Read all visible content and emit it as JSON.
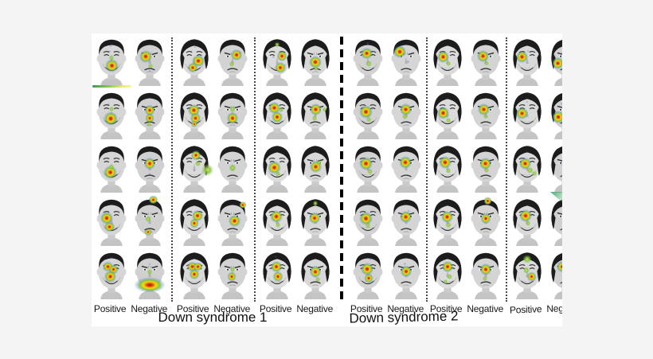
{
  "figure": {
    "rows": 5,
    "groups": [
      {
        "title": "Down syndrome 1",
        "pairs": [
          {
            "labels": [
              "Positive",
              "Negative"
            ]
          },
          {
            "labels": [
              "Positive",
              "Negative"
            ]
          },
          {
            "labels": [
              "Positive",
              "Negative"
            ]
          }
        ]
      },
      {
        "title": "Down syndrome 2",
        "pairs": [
          {
            "labels": [
              "Positive",
              "Negative"
            ]
          },
          {
            "labels": [
              "Positive",
              "Negative"
            ]
          },
          {
            "labels": [
              "Positive",
              "Negative"
            ]
          }
        ]
      }
    ],
    "face_columns": [
      "m",
      "m",
      "f",
      "m",
      "f",
      "f",
      "m",
      "m",
      "f",
      "m",
      "f",
      "f"
    ],
    "heat": [
      [
        [
          [
            0.52,
            0.6,
            1.0
          ],
          [
            0.5,
            0.44,
            0.55,
            "g"
          ],
          [
            0.48,
            0.2,
            0.4,
            "b"
          ],
          [
            0.45,
            0.31,
            0.35,
            "b"
          ]
        ],
        [
          [
            0.4,
            0.42,
            0.95
          ],
          [
            0.52,
            0.6,
            0.5,
            "g"
          ],
          [
            0.5,
            0.7,
            0.4,
            "b"
          ]
        ],
        [
          [
            0.6,
            0.5,
            0.95
          ],
          [
            0.46,
            0.63,
            0.75
          ],
          [
            0.52,
            0.22,
            0.4,
            "b"
          ]
        ],
        [
          [
            0.6,
            0.38,
            0.85
          ],
          [
            0.48,
            0.56,
            0.55,
            "g"
          ]
        ],
        [
          [
            0.5,
            0.18,
            0.5,
            "g"
          ],
          [
            0.63,
            0.41,
            0.8
          ],
          [
            0.58,
            0.63,
            0.85
          ],
          [
            0.4,
            0.42,
            0.4,
            "b"
          ]
        ],
        [
          [
            0.5,
            0.52,
            0.95
          ],
          [
            0.53,
            0.65,
            0.5,
            "g"
          ]
        ],
        [
          [
            0.47,
            0.35,
            0.9
          ],
          [
            0.52,
            0.56,
            0.6,
            "g"
          ],
          [
            0.5,
            0.15,
            0.4,
            "b"
          ]
        ],
        [
          [
            0.32,
            0.32,
            0.95
          ],
          [
            0.56,
            0.52,
            0.45,
            "b"
          ]
        ],
        [
          [
            0.38,
            0.42,
            0.9
          ],
          [
            0.52,
            0.55,
            0.5,
            "g"
          ]
        ],
        [
          [
            0.42,
            0.4,
            0.9
          ],
          [
            0.52,
            0.55,
            0.45,
            "g"
          ]
        ],
        [
          [
            0.35,
            0.42,
            0.9
          ],
          [
            0.52,
            0.3,
            0.4,
            "b"
          ]
        ],
        [
          [
            0.3,
            0.55,
            0.9
          ],
          [
            0.4,
            0.35,
            0.45,
            "b"
          ]
        ]
      ],
      [
        [
          [
            0.48,
            0.58,
            1.05
          ],
          [
            0.5,
            0.4,
            0.5,
            "g"
          ],
          [
            0.42,
            0.3,
            0.35,
            "b"
          ]
        ],
        [
          [
            0.5,
            0.42,
            0.8
          ],
          [
            0.5,
            0.58,
            0.7
          ],
          [
            0.48,
            0.7,
            0.45,
            "g"
          ]
        ],
        [
          [
            0.48,
            0.42,
            0.9
          ],
          [
            0.53,
            0.58,
            0.8
          ],
          [
            0.5,
            0.7,
            0.5
          ]
        ],
        [
          [
            0.5,
            0.4,
            0.65,
            "g"
          ],
          [
            0.5,
            0.58,
            0.9
          ]
        ],
        [
          [
            0.42,
            0.38,
            0.9
          ],
          [
            0.5,
            0.55,
            0.85
          ],
          [
            0.6,
            0.42,
            0.5,
            "g"
          ]
        ],
        [
          [
            0.52,
            0.4,
            0.9
          ],
          [
            0.48,
            0.58,
            0.55,
            "g"
          ],
          [
            0.75,
            0.4,
            0.45,
            "g"
          ]
        ],
        [
          [
            0.45,
            0.45,
            1.0
          ],
          [
            0.52,
            0.6,
            0.5,
            "g"
          ]
        ],
        [
          [
            0.48,
            0.4,
            0.9
          ],
          [
            0.46,
            0.55,
            0.55,
            "g"
          ]
        ],
        [
          [
            0.38,
            0.48,
            0.95
          ],
          [
            0.52,
            0.62,
            0.5,
            "g"
          ]
        ],
        [
          [
            0.45,
            0.4,
            0.9
          ],
          [
            0.5,
            0.55,
            0.45,
            "g"
          ]
        ],
        [
          [
            0.35,
            0.48,
            0.9
          ],
          [
            0.5,
            0.25,
            0.4,
            "b"
          ]
        ],
        [
          [
            0.3,
            0.55,
            0.95
          ],
          [
            0.4,
            0.3,
            0.45,
            "b"
          ]
        ]
      ],
      [
        [
          [
            0.46,
            0.6,
            1.0
          ],
          [
            0.5,
            0.48,
            0.55,
            "g"
          ]
        ],
        [
          [
            0.5,
            0.42,
            0.9
          ],
          [
            0.5,
            0.62,
            0.45,
            "b"
          ]
        ],
        [
          [
            0.55,
            0.25,
            0.75
          ],
          [
            0.6,
            0.42,
            0.55,
            "g"
          ],
          [
            0.86,
            0.55,
            1.15,
            "g"
          ],
          [
            0.5,
            0.56,
            0.45,
            "b"
          ]
        ],
        [
          [
            0.5,
            0.5,
            0.75,
            "g"
          ],
          [
            0.56,
            0.38,
            0.45,
            "b"
          ]
        ],
        [
          [
            0.42,
            0.5,
            1.0
          ],
          [
            0.52,
            0.63,
            0.55,
            "g"
          ]
        ],
        [
          [
            0.52,
            0.48,
            0.9
          ],
          [
            0.6,
            0.4,
            0.5,
            "g"
          ]
        ],
        [
          [
            0.44,
            0.42,
            1.0
          ],
          [
            0.55,
            0.58,
            0.55,
            "g"
          ]
        ],
        [
          [
            0.48,
            0.4,
            0.95
          ]
        ],
        [
          [
            0.44,
            0.4,
            0.95
          ],
          [
            0.52,
            0.56,
            0.55,
            "g"
          ]
        ],
        [
          [
            0.48,
            0.42,
            0.9
          ],
          [
            0.52,
            0.56,
            0.5,
            "g"
          ]
        ],
        [
          [
            0.44,
            0.42,
            0.9
          ],
          [
            0.58,
            0.56,
            0.65,
            "g"
          ],
          [
            0.7,
            0.62,
            0.5,
            "g"
          ]
        ],
        [
          [
            0.56,
            0.4,
            1.0
          ],
          [
            0.5,
            0.56,
            0.5,
            "g"
          ]
        ]
      ],
      [
        [
          [
            0.36,
            0.45,
            0.95
          ],
          [
            0.44,
            0.62,
            0.8
          ]
        ],
        [
          [
            0.6,
            0.08,
            0.7
          ],
          [
            0.46,
            0.46,
            0.65,
            "g"
          ],
          [
            0.46,
            0.72,
            0.55
          ]
        ],
        [
          [
            0.58,
            0.4,
            0.85
          ],
          [
            0.5,
            0.55,
            0.7
          ]
        ],
        [
          [
            0.78,
            0.18,
            0.55
          ],
          [
            0.55,
            0.5,
            0.9
          ]
        ],
        [
          [
            0.48,
            0.42,
            0.95
          ],
          [
            0.52,
            0.58,
            0.55,
            "g"
          ]
        ],
        [
          [
            0.5,
            0.15,
            0.55,
            "g"
          ],
          [
            0.48,
            0.45,
            0.85
          ]
        ],
        [
          [
            0.45,
            0.45,
            1.0
          ],
          [
            0.5,
            0.6,
            0.55,
            "g"
          ]
        ],
        [
          [
            0.48,
            0.42,
            0.9
          ],
          [
            0.56,
            0.3,
            0.4,
            "b"
          ]
        ],
        [
          [
            0.48,
            0.42,
            0.9
          ],
          [
            0.52,
            0.58,
            0.6,
            "g"
          ]
        ],
        [
          [
            0.55,
            0.1,
            0.6
          ],
          [
            0.5,
            0.45,
            0.8
          ]
        ],
        [
          [
            0.45,
            0.4,
            0.95
          ],
          [
            0.52,
            0.55,
            0.55,
            "g"
          ]
        ],
        [
          [
            0.6,
            0.35,
            1.05
          ],
          [
            0.45,
            0.2,
            0.45,
            "b"
          ]
        ]
      ],
      [
        [
          [
            0.4,
            0.35,
            0.8
          ],
          [
            0.56,
            0.4,
            0.7
          ],
          [
            0.46,
            0.55,
            0.9
          ],
          [
            0.5,
            0.18,
            0.35,
            "b"
          ]
        ],
        [
          [
            0.5,
            0.72,
            1.15,
            "j",
            2.0
          ],
          [
            0.5,
            0.45,
            0.55,
            "g"
          ],
          [
            0.5,
            0.3,
            0.35,
            "b"
          ]
        ],
        [
          [
            0.44,
            0.35,
            0.8
          ],
          [
            0.6,
            0.35,
            0.7
          ],
          [
            0.5,
            0.5,
            0.8
          ]
        ],
        [
          [
            0.5,
            0.4,
            0.55,
            "g"
          ],
          [
            0.48,
            0.55,
            0.7
          ]
        ],
        [
          [
            0.48,
            0.35,
            0.85
          ],
          [
            0.52,
            0.55,
            0.8
          ],
          [
            0.45,
            0.15,
            0.35,
            "b"
          ]
        ],
        [
          [
            0.5,
            0.45,
            0.9
          ],
          [
            0.56,
            0.6,
            0.5,
            "g"
          ]
        ],
        [
          [
            0.48,
            0.4,
            0.95
          ],
          [
            0.52,
            0.58,
            0.7
          ],
          [
            0.56,
            0.2,
            0.4,
            "b"
          ]
        ],
        [
          [
            0.46,
            0.3,
            0.45,
            "b"
          ],
          [
            0.5,
            0.45,
            0.85
          ]
        ],
        [
          [
            0.5,
            0.35,
            0.9
          ],
          [
            0.56,
            0.55,
            0.55,
            "g"
          ],
          [
            0.44,
            0.65,
            0.45,
            "g"
          ]
        ],
        [
          [
            0.5,
            0.4,
            0.9
          ],
          [
            0.48,
            0.58,
            0.5,
            "g"
          ]
        ],
        [
          [
            0.5,
            0.2,
            0.85,
            "g"
          ],
          [
            0.48,
            0.42,
            0.65,
            "g"
          ],
          [
            0.62,
            0.55,
            0.7
          ]
        ],
        [
          [
            0.42,
            0.35,
            0.85
          ],
          [
            0.56,
            0.5,
            0.55,
            "b"
          ]
        ]
      ]
    ],
    "colors": {
      "page_background": "#f4f4f5",
      "figure_background": "#ffffff",
      "heat_core": "#a81000",
      "heat_hot": "#ffd900",
      "heat_mid": "#7cc23e",
      "heat_cool": "#4a6fd4",
      "divider": "#000000",
      "label_text": "#161616"
    }
  }
}
